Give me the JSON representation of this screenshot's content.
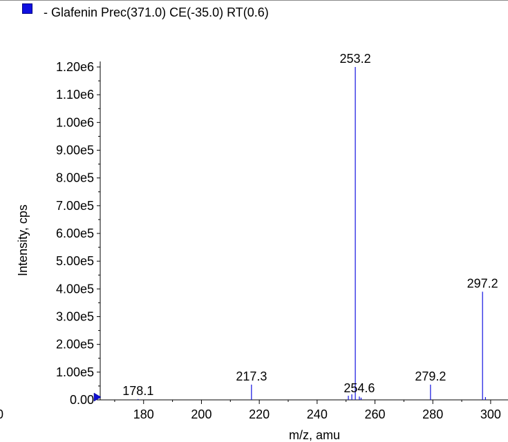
{
  "legend": {
    "label": "- Glafenin Prec(371.0) CE(-35.0) RT(0.6)",
    "color": "#1010e0"
  },
  "chart_data": {
    "type": "bar",
    "title": "",
    "xlabel": "m/z, amu",
    "ylabel": "Intensity, cps",
    "xlim": [
      165,
      306
    ],
    "ylim": [
      0,
      1200000
    ],
    "x_ticks": [
      180,
      200,
      220,
      240,
      260,
      280,
      300
    ],
    "x_tick_labels": [
      "180",
      "200",
      "220",
      "240",
      "260",
      "280",
      "300"
    ],
    "x_edge_label": "0",
    "y_ticks": [
      0,
      100000,
      200000,
      300000,
      400000,
      500000,
      600000,
      700000,
      800000,
      900000,
      1000000,
      1100000,
      1200000
    ],
    "y_tick_labels": [
      "0.00",
      "1.00e5",
      "2.00e5",
      "3.00e5",
      "4.00e5",
      "5.00e5",
      "6.00e5",
      "7.00e5",
      "8.00e5",
      "9.00e5",
      "1.00e6",
      "1.10e6",
      "1.20e6"
    ],
    "grid": false,
    "bar_color": "#1010e0",
    "peaks": [
      {
        "x": 178.1,
        "y": 3000,
        "label": "178.1"
      },
      {
        "x": 217.3,
        "y": 55000,
        "label": "217.3"
      },
      {
        "x": 250.8,
        "y": 15000,
        "label": ""
      },
      {
        "x": 252.0,
        "y": 20000,
        "label": ""
      },
      {
        "x": 253.2,
        "y": 1200000,
        "label": "253.2"
      },
      {
        "x": 254.6,
        "y": 12000,
        "label": "254.6"
      },
      {
        "x": 255.2,
        "y": 8000,
        "label": ""
      },
      {
        "x": 279.2,
        "y": 55000,
        "label": "279.2"
      },
      {
        "x": 297.2,
        "y": 390000,
        "label": "297.2"
      },
      {
        "x": 298.2,
        "y": 10000,
        "label": ""
      }
    ]
  }
}
